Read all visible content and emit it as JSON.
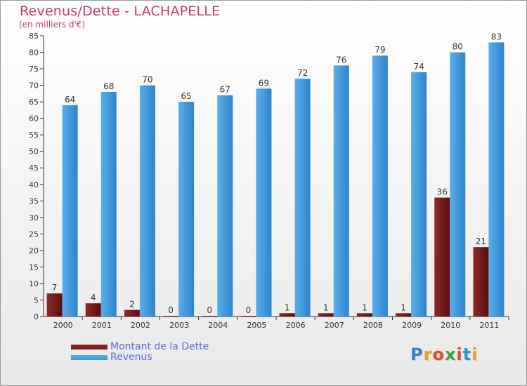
{
  "chart_data": {
    "type": "bar",
    "title": "Revenus/Dette - LACHAPELLE",
    "subtitle": "(en milliers d'€)",
    "categories": [
      "2000",
      "2001",
      "2002",
      "2003",
      "2004",
      "2005",
      "2006",
      "2007",
      "2008",
      "2009",
      "2010",
      "2011"
    ],
    "series": [
      {
        "name": "Montant de la Dette",
        "color": "#7a1a1a",
        "values": [
          7,
          4,
          2,
          0,
          0,
          0,
          1,
          1,
          1,
          1,
          36,
          21
        ]
      },
      {
        "name": "Revenus",
        "color": "#3b95dc",
        "values": [
          64,
          68,
          70,
          65,
          67,
          69,
          72,
          76,
          79,
          74,
          80,
          83
        ]
      }
    ],
    "ylim": [
      0,
      85
    ],
    "yticks": [
      0,
      5,
      10,
      15,
      20,
      25,
      30,
      35,
      40,
      45,
      50,
      55,
      60,
      65,
      70,
      75,
      80,
      85
    ],
    "grid": false,
    "legend_position": "bottom-left"
  },
  "logo": {
    "letters": [
      "P",
      "r",
      "o",
      "x",
      "i",
      "t",
      "i"
    ],
    "colors": [
      "#3b7fd6",
      "#e8a21c",
      "#e04b2a",
      "#3aa63a",
      "#e04b2a",
      "#2f8fd6",
      "#e8a21c"
    ]
  }
}
